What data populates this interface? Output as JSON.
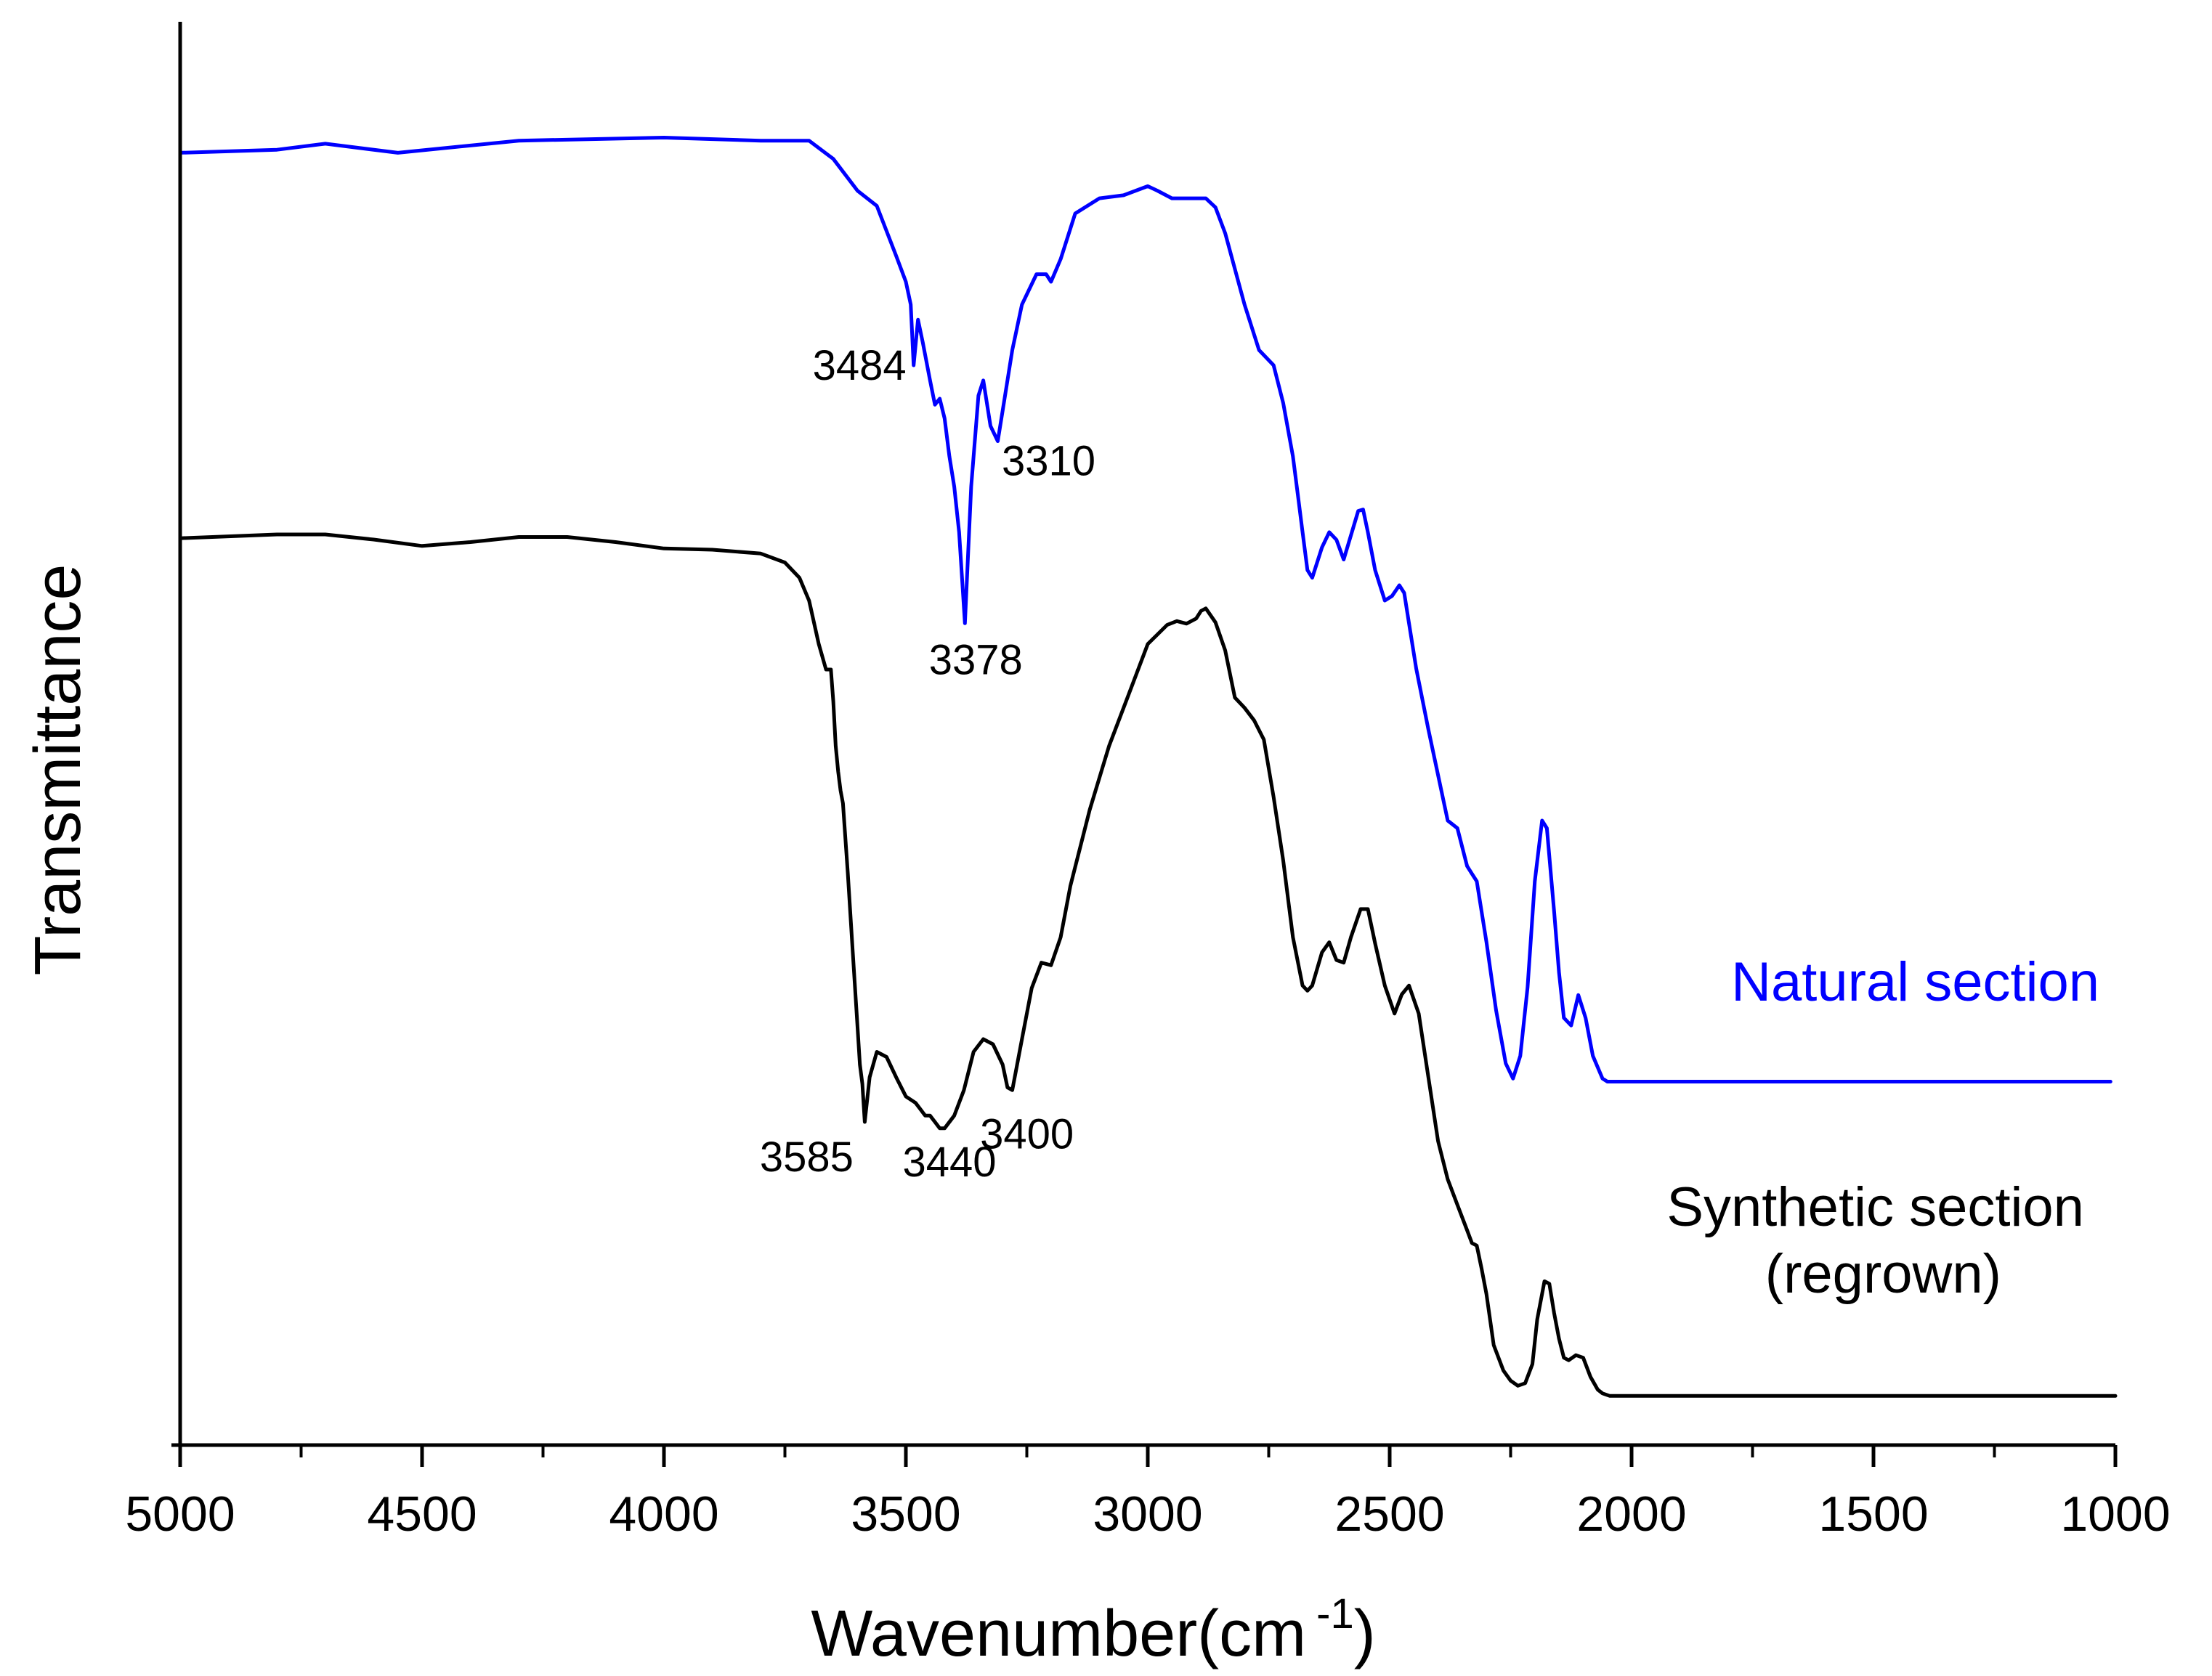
{
  "chart_data": {
    "type": "line",
    "title": "",
    "xlabel": "Wavenumber(cm",
    "xlabel_superscript": "-1",
    "xlabel_close": ")",
    "ylabel": "Transmittance",
    "xlim": [
      5000,
      1000
    ],
    "ylim": [
      0,
      1
    ],
    "x_ticks": [
      5000,
      4500,
      4000,
      3500,
      3000,
      2500,
      2000,
      1500,
      1000
    ],
    "x_tick_labels": [
      "5000",
      "4500",
      "4000",
      "3500",
      "3000",
      "2500",
      "2000",
      "1500",
      "1000"
    ],
    "grid": false,
    "series": [
      {
        "name": "Natural section",
        "color": "#0000ff",
        "x": [
          5000,
          4800,
          4700,
          4550,
          4300,
          4000,
          3800,
          3700,
          3650,
          3600,
          3560,
          3520,
          3500,
          3490,
          3484,
          3475,
          3465,
          3450,
          3440,
          3430,
          3420,
          3410,
          3400,
          3390,
          3378,
          3365,
          3350,
          3340,
          3325,
          3310,
          3300,
          3280,
          3260,
          3230,
          3210,
          3200,
          3180,
          3150,
          3100,
          3050,
          3000,
          2980,
          2950,
          2920,
          2900,
          2880,
          2860,
          2840,
          2800,
          2770,
          2740,
          2720,
          2700,
          2690,
          2680,
          2670,
          2660,
          2640,
          2625,
          2610,
          2595,
          2580,
          2565,
          2555,
          2545,
          2530,
          2510,
          2495,
          2480,
          2470,
          2460,
          2445,
          2420,
          2400,
          2380,
          2360,
          2340,
          2330,
          2320,
          2300,
          2280,
          2260,
          2245,
          2230,
          2215,
          2200,
          2185,
          2175,
          2160,
          2150,
          2140,
          2125,
          2110,
          2095,
          2080,
          2060,
          2050,
          1500,
          1010
        ],
        "y": [
          0.94,
          0.942,
          0.946,
          0.94,
          0.948,
          0.95,
          0.948,
          0.948,
          0.936,
          0.915,
          0.905,
          0.872,
          0.855,
          0.84,
          0.8,
          0.83,
          0.815,
          0.79,
          0.774,
          0.778,
          0.765,
          0.74,
          0.72,
          0.69,
          0.63,
          0.72,
          0.78,
          0.79,
          0.76,
          0.75,
          0.77,
          0.81,
          0.84,
          0.86,
          0.86,
          0.855,
          0.87,
          0.9,
          0.91,
          0.912,
          0.918,
          0.915,
          0.91,
          0.91,
          0.91,
          0.91,
          0.904,
          0.887,
          0.84,
          0.81,
          0.8,
          0.775,
          0.74,
          0.715,
          0.69,
          0.665,
          0.66,
          0.68,
          0.69,
          0.685,
          0.672,
          0.688,
          0.704,
          0.705,
          0.69,
          0.665,
          0.645,
          0.648,
          0.655,
          0.65,
          0.63,
          0.6,
          0.56,
          0.53,
          0.5,
          0.495,
          0.47,
          0.465,
          0.46,
          0.42,
          0.375,
          0.34,
          0.33,
          0.345,
          0.39,
          0.46,
          0.5,
          0.495,
          0.44,
          0.4,
          0.37,
          0.365,
          0.385,
          0.37,
          0.345,
          0.33,
          0.328,
          0.328,
          0.328
        ]
      },
      {
        "name": "Synthetic section\n(regrown)",
        "color": "#000000",
        "x": [
          5000,
          4800,
          4700,
          4600,
          4500,
          4400,
          4300,
          4200,
          4100,
          4000,
          3900,
          3800,
          3750,
          3720,
          3700,
          3680,
          3665,
          3655,
          3650,
          3645,
          3640,
          3635,
          3630,
          3620,
          3610,
          3600,
          3595,
          3590,
          3585,
          3575,
          3560,
          3540,
          3520,
          3500,
          3480,
          3470,
          3460,
          3450,
          3440,
          3430,
          3420,
          3400,
          3380,
          3360,
          3340,
          3320,
          3300,
          3290,
          3280,
          3260,
          3240,
          3220,
          3200,
          3180,
          3160,
          3120,
          3080,
          3040,
          3000,
          2960,
          2940,
          2920,
          2900,
          2890,
          2880,
          2860,
          2840,
          2820,
          2800,
          2780,
          2760,
          2740,
          2720,
          2700,
          2680,
          2670,
          2660,
          2640,
          2625,
          2610,
          2595,
          2580,
          2560,
          2545,
          2530,
          2510,
          2490,
          2475,
          2460,
          2440,
          2420,
          2400,
          2380,
          2360,
          2340,
          2330,
          2320,
          2310,
          2300,
          2285,
          2265,
          2250,
          2235,
          2220,
          2205,
          2195,
          2180,
          2170,
          2160,
          2150,
          2140,
          2130,
          2115,
          2100,
          2085,
          2070,
          2060,
          2045,
          1500,
          1000
        ],
        "y": [
          0.703,
          0.706,
          0.706,
          0.702,
          0.697,
          0.7,
          0.704,
          0.704,
          0.7,
          0.695,
          0.694,
          0.691,
          0.684,
          0.672,
          0.654,
          0.62,
          0.6,
          0.6,
          0.575,
          0.54,
          0.52,
          0.505,
          0.495,
          0.44,
          0.38,
          0.32,
          0.29,
          0.275,
          0.245,
          0.28,
          0.3,
          0.296,
          0.28,
          0.265,
          0.26,
          0.255,
          0.25,
          0.25,
          0.245,
          0.24,
          0.24,
          0.25,
          0.27,
          0.3,
          0.31,
          0.306,
          0.29,
          0.272,
          0.27,
          0.31,
          0.35,
          0.37,
          0.368,
          0.39,
          0.43,
          0.49,
          0.54,
          0.58,
          0.62,
          0.635,
          0.638,
          0.636,
          0.64,
          0.646,
          0.648,
          0.637,
          0.615,
          0.578,
          0.57,
          0.56,
          0.545,
          0.5,
          0.45,
          0.39,
          0.352,
          0.348,
          0.352,
          0.378,
          0.386,
          0.372,
          0.37,
          0.39,
          0.412,
          0.412,
          0.385,
          0.352,
          0.33,
          0.345,
          0.352,
          0.33,
          0.28,
          0.23,
          0.2,
          0.18,
          0.16,
          0.15,
          0.148,
          0.13,
          0.11,
          0.07,
          0.05,
          0.042,
          0.038,
          0.04,
          0.055,
          0.09,
          0.12,
          0.118,
          0.095,
          0.075,
          0.06,
          0.058,
          0.062,
          0.06,
          0.045,
          0.035,
          0.032,
          0.03,
          0.03,
          0.03
        ]
      }
    ],
    "annotations": [
      {
        "text": "3484",
        "series": 0,
        "x": 3484
      },
      {
        "text": "3310",
        "series": 0,
        "x": 3310
      },
      {
        "text": "3378",
        "series": 0,
        "x": 3378
      },
      {
        "text": "3585",
        "series": 1,
        "x": 3585
      },
      {
        "text": "3440",
        "series": 1,
        "x": 3440
      },
      {
        "text": "3400",
        "series": 1,
        "x": 3400
      }
    ]
  }
}
